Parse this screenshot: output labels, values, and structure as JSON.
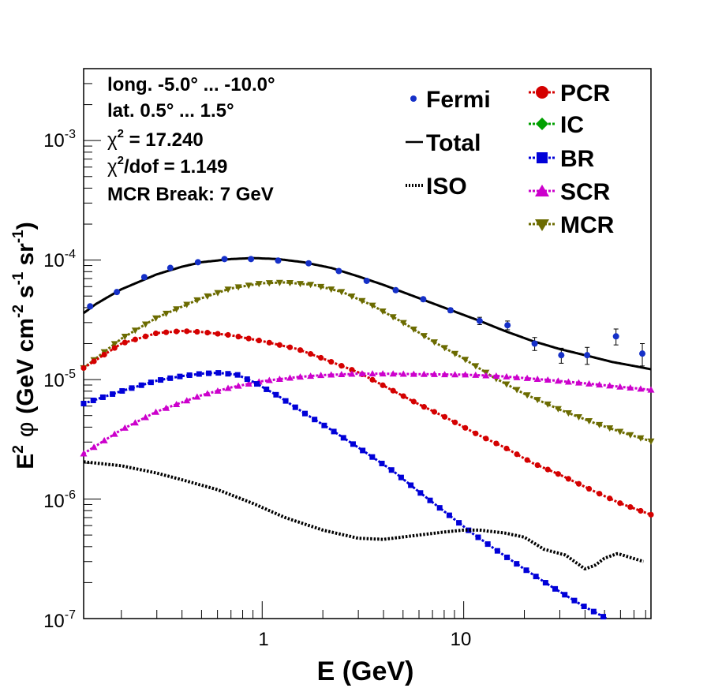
{
  "chart_data": {
    "type": "line",
    "xlabel": "E (GeV)",
    "ylabel_parts": {
      "a": "E",
      "a_sup": "2",
      "phi": "φ",
      "b": "(GeV cm",
      "b_sup": "-2",
      "c": "s",
      "c_sup": "-1",
      "d": "sr",
      "d_sup": "-1",
      "e": ")"
    },
    "x_scale": "log",
    "y_scale": "log",
    "xlim": [
      0.13,
      85
    ],
    "ylim": [
      1e-07,
      0.004
    ],
    "grid": false,
    "x_ticks": [
      {
        "value": 1,
        "label": "1"
      },
      {
        "value": 10,
        "label": "10"
      }
    ],
    "y_ticks": [
      {
        "value": 1e-07,
        "base": "10",
        "exp": "-7"
      },
      {
        "value": 1e-06,
        "base": "10",
        "exp": "-6"
      },
      {
        "value": 1e-05,
        "base": "10",
        "exp": "-5"
      },
      {
        "value": 0.0001,
        "base": "10",
        "exp": "-4"
      },
      {
        "value": 0.001,
        "base": "10",
        "exp": "-3"
      }
    ],
    "annotations": {
      "line1": "long. -5.0° ... -10.0°",
      "line2": "lat. 0.5° ... 1.5°",
      "chi_symbol": "χ",
      "chi_exp": "2",
      "chi2_text": " = 17.240",
      "chi2dof_text": "/dof = 1.149",
      "line5": "MCR Break:  7 GeV"
    },
    "legend_placement": "top-right",
    "legend": [
      {
        "key": "fermi",
        "label": "Fermi",
        "marker": "dot",
        "color": "#1530c8"
      },
      {
        "key": "total",
        "label": "Total",
        "marker": "line",
        "color": "#000000"
      },
      {
        "key": "iso",
        "label": "ISO",
        "marker": "dotted",
        "color": "#000000"
      },
      {
        "key": "pcr",
        "label": "PCR",
        "marker": "circle",
        "color": "#d40000"
      },
      {
        "key": "ic",
        "label": "IC",
        "marker": "diamond",
        "color": "#00a000"
      },
      {
        "key": "br",
        "label": "BR",
        "marker": "square",
        "color": "#0000d8"
      },
      {
        "key": "scr",
        "label": "SCR",
        "marker": "triangle",
        "color": "#cc00cc"
      },
      {
        "key": "mcr",
        "label": "MCR",
        "marker": "triangle-down",
        "color": "#6b6b00"
      }
    ],
    "fermi": {
      "x": [
        0.14,
        0.19,
        0.26,
        0.35,
        0.48,
        0.65,
        0.88,
        1.2,
        1.7,
        2.4,
        3.3,
        4.6,
        6.3,
        8.6,
        12,
        16.5,
        22.5,
        30.5,
        41,
        57,
        77
      ],
      "y": [
        4.1e-05,
        5.4e-05,
        7.2e-05,
        8.6e-05,
        9.6e-05,
        0.000102,
        0.000102,
        9.9e-05,
        9.4e-05,
        8.1e-05,
        6.7e-05,
        5.6e-05,
        4.7e-05,
        3.8e-05,
        3.1e-05,
        2.85e-05,
        2e-05,
        1.6e-05,
        1.6e-05,
        2.3e-05,
        1.65e-05
      ],
      "err": [
        1.5e-06,
        1.8e-06,
        2.2e-06,
        2.5e-06,
        2.8e-06,
        3e-06,
        3e-06,
        3e-06,
        2.8e-06,
        2.5e-06,
        2.2e-06,
        2e-06,
        1.8e-06,
        1.6e-06,
        2.2e-06,
        2.4e-06,
        2.5e-06,
        2.3e-06,
        2.6e-06,
        3.5e-06,
        3.5e-06
      ]
    },
    "series": [
      {
        "key": "total",
        "style": "solid",
        "color": "#000000",
        "x": [
          0.13,
          0.15,
          0.2,
          0.3,
          0.4,
          0.5,
          0.7,
          0.9,
          1.2,
          1.6,
          2.2,
          3,
          4,
          6,
          8,
          12,
          16,
          22,
          30,
          40,
          55,
          70,
          85
        ],
        "y": [
          3.6e-05,
          4.3e-05,
          5.7e-05,
          7.6e-05,
          8.8e-05,
          9.6e-05,
          0.000102,
          0.000104,
          0.000102,
          9.6e-05,
          8.6e-05,
          7.3e-05,
          6.2e-05,
          4.8e-05,
          4e-05,
          3.1e-05,
          2.55e-05,
          2.1e-05,
          1.8e-05,
          1.6e-05,
          1.4e-05,
          1.3e-05,
          1.22e-05
        ]
      },
      {
        "key": "mcr",
        "style": "marker",
        "color": "#6b6b00",
        "marker": "triangle-down",
        "x": [
          0.13,
          0.2,
          0.3,
          0.5,
          0.7,
          1,
          1.3,
          1.8,
          2.5,
          3.5,
          5,
          7,
          10,
          14,
          20,
          30,
          45,
          65,
          85
        ],
        "y": [
          1.25e-05,
          2.2e-05,
          3.3e-05,
          4.8e-05,
          5.8e-05,
          6.4e-05,
          6.5e-05,
          6.2e-05,
          5.4e-05,
          4.2e-05,
          3e-05,
          2.1e-05,
          1.5e-05,
          1.05e-05,
          7.6e-06,
          5.6e-06,
          4.3e-06,
          3.5e-06,
          3.05e-06
        ]
      },
      {
        "key": "pcr",
        "style": "marker",
        "color": "#d40000",
        "marker": "circle",
        "x": [
          0.13,
          0.2,
          0.3,
          0.4,
          0.5,
          0.7,
          1,
          1.5,
          2,
          3,
          4,
          6,
          8,
          12,
          16,
          22,
          30,
          45,
          60,
          85
        ],
        "y": [
          1.25e-05,
          2e-05,
          2.45e-05,
          2.55e-05,
          2.5e-05,
          2.35e-05,
          2.1e-05,
          1.8e-05,
          1.5e-05,
          1.15e-05,
          8.9e-06,
          6.2e-06,
          4.9e-06,
          3.4e-06,
          2.7e-06,
          2e-06,
          1.6e-06,
          1.15e-06,
          9.2e-07,
          7.4e-07
        ]
      },
      {
        "key": "scr",
        "style": "marker",
        "color": "#cc00cc",
        "marker": "triangle",
        "x": [
          0.13,
          0.2,
          0.3,
          0.5,
          0.7,
          1,
          1.5,
          2,
          3,
          4,
          6,
          10,
          15,
          25,
          40,
          60,
          85
        ],
        "y": [
          2.4e-06,
          3.8e-06,
          5.4e-06,
          7.4e-06,
          8.6e-06,
          9.7e-06,
          1.05e-05,
          1.09e-05,
          1.12e-05,
          1.12e-05,
          1.11e-05,
          1.1e-05,
          1.07e-05,
          1e-05,
          9.3e-06,
          8.7e-06,
          8.2e-06
        ]
      },
      {
        "key": "br",
        "style": "marker",
        "color": "#0000d8",
        "marker": "square",
        "x": [
          0.13,
          0.2,
          0.3,
          0.4,
          0.5,
          0.6,
          0.75,
          0.9,
          1.2,
          1.6,
          2.2,
          3,
          4.5,
          6,
          8,
          11,
          15,
          20,
          28,
          40,
          55
        ],
        "y": [
          6.3e-06,
          8e-06,
          9.8e-06,
          1.07e-05,
          1.12e-05,
          1.14e-05,
          1.1e-05,
          9.6e-06,
          7.3e-06,
          5.3e-06,
          3.8e-06,
          2.7e-06,
          1.7e-06,
          1.15e-06,
          7.9e-07,
          5.2e-07,
          3.6e-07,
          2.6e-07,
          1.8e-07,
          1.25e-07,
          9.4e-08
        ]
      },
      {
        "key": "iso",
        "style": "dotted",
        "color": "#000000",
        "x": [
          0.13,
          0.2,
          0.3,
          0.4,
          0.6,
          0.9,
          1.3,
          2,
          3,
          4,
          6,
          8,
          10,
          12,
          16,
          20,
          25,
          32,
          40,
          45,
          50,
          58,
          65,
          78
        ],
        "y": [
          2.05e-06,
          1.9e-06,
          1.65e-06,
          1.45e-06,
          1.2e-06,
          9.2e-07,
          7e-07,
          5.5e-07,
          4.7e-07,
          4.6e-07,
          5e-07,
          5.3e-07,
          5.5e-07,
          5.5e-07,
          5.2e-07,
          4.8e-07,
          3.8e-07,
          3.4e-07,
          2.6e-07,
          2.8e-07,
          3.2e-07,
          3.5e-07,
          3.3e-07,
          3e-07
        ]
      }
    ]
  }
}
